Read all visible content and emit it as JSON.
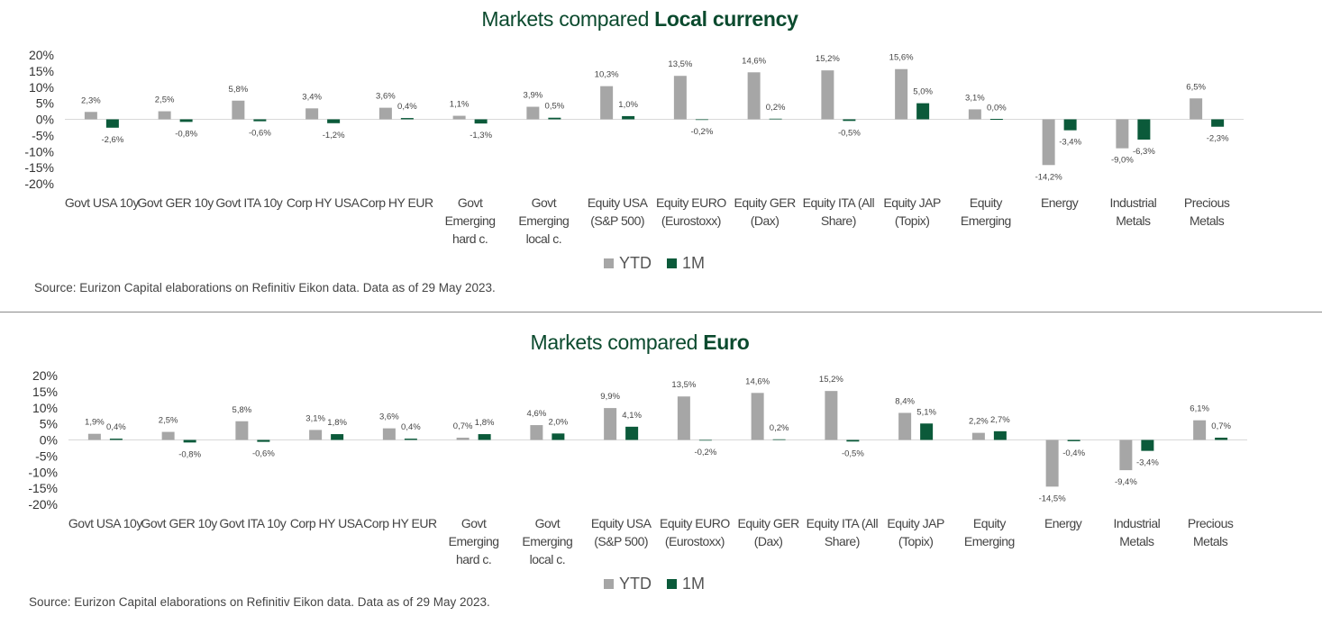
{
  "colors": {
    "ytd": "#a6a6a6",
    "m1": "#0b5a3a",
    "title": "#0b4a2e",
    "axis_line": "#d9d9d9"
  },
  "chart_data": [
    {
      "type": "bar",
      "title_prefix": "Markets compared ",
      "title_bold": "Local currency",
      "categories": [
        [
          "Govt USA 10y"
        ],
        [
          "Govt GER 10y"
        ],
        [
          "Govt ITA 10y"
        ],
        [
          "Corp HY USA"
        ],
        [
          "Corp HY EUR"
        ],
        [
          "Govt",
          "Emerging",
          "hard c."
        ],
        [
          "Govt",
          "Emerging",
          "local c."
        ],
        [
          "Equity USA",
          "(S&P 500)"
        ],
        [
          "Equity EURO",
          "(Eurostoxx)"
        ],
        [
          "Equity GER",
          "(Dax)"
        ],
        [
          "Equity ITA (All",
          "Share)"
        ],
        [
          "Equity JAP",
          "(Topix)"
        ],
        [
          "Equity",
          "Emerging"
        ],
        [
          "Energy"
        ],
        [
          "Industrial",
          "Metals"
        ],
        [
          "Precious",
          "Metals"
        ]
      ],
      "series": [
        {
          "name": "YTD",
          "values": [
            2.3,
            2.5,
            5.8,
            3.4,
            3.6,
            1.1,
            3.9,
            10.3,
            13.5,
            14.6,
            15.2,
            15.6,
            3.1,
            -14.2,
            -9.0,
            6.5
          ],
          "labels": [
            "2,3%",
            "2,5%",
            "5,8%",
            "3,4%",
            "3,6%",
            "1,1%",
            "3,9%",
            "10,3%",
            "13,5%",
            "14,6%",
            "15,2%",
            "15,6%",
            "3,1%",
            "-14,2%",
            "-9,0%",
            "6,5%"
          ]
        },
        {
          "name": "1M",
          "values": [
            -2.6,
            -0.8,
            -0.6,
            -1.2,
            0.4,
            -1.3,
            0.5,
            1.0,
            -0.2,
            0.2,
            -0.5,
            5.0,
            0.0,
            -3.4,
            -6.3,
            -2.3
          ],
          "labels": [
            "-2,6%",
            "-0,8%",
            "-0,6%",
            "-1,2%",
            "0,4%",
            "-1,3%",
            "0,5%",
            "1,0%",
            "-0,2%",
            "0,2%",
            "-0,5%",
            "5,0%",
            "0,0%",
            "-3,4%",
            "-6,3%",
            "-2,3%"
          ]
        }
      ],
      "yticks": [
        "20%",
        "15%",
        "10%",
        "5%",
        "0%",
        "-5%",
        "-10%",
        "-15%",
        "-20%"
      ],
      "ylim": [
        -20,
        20
      ],
      "legend_placement": "bottom",
      "grid": false,
      "source": "Source: Eurizon Capital elaborations on Refinitiv Eikon data. Data as of 29 May 2023."
    },
    {
      "type": "bar",
      "title_prefix": "Markets compared ",
      "title_bold": "Euro",
      "categories": [
        [
          "Govt USA 10y"
        ],
        [
          "Govt GER 10y"
        ],
        [
          "Govt ITA 10y"
        ],
        [
          "Corp HY USA"
        ],
        [
          "Corp HY EUR"
        ],
        [
          "Govt",
          "Emerging",
          "hard c."
        ],
        [
          "Govt",
          "Emerging",
          "local c."
        ],
        [
          "Equity USA",
          "(S&P 500)"
        ],
        [
          "Equity EURO",
          "(Eurostoxx)"
        ],
        [
          "Equity GER",
          "(Dax)"
        ],
        [
          "Equity ITA (All",
          "Share)"
        ],
        [
          "Equity JAP",
          "(Topix)"
        ],
        [
          "Equity",
          "Emerging"
        ],
        [
          "Energy"
        ],
        [
          "Industrial",
          "Metals"
        ],
        [
          "Precious",
          "Metals"
        ]
      ],
      "series": [
        {
          "name": "YTD",
          "values": [
            1.9,
            2.5,
            5.8,
            3.1,
            3.6,
            0.7,
            4.6,
            9.9,
            13.5,
            14.6,
            15.2,
            8.4,
            2.2,
            -14.5,
            -9.4,
            6.1
          ],
          "labels": [
            "1,9%",
            "2,5%",
            "5,8%",
            "3,1%",
            "3,6%",
            "0,7%",
            "4,6%",
            "9,9%",
            "13,5%",
            "14,6%",
            "15,2%",
            "8,4%",
            "2,2%",
            "-14,5%",
            "-9,4%",
            "6,1%"
          ]
        },
        {
          "name": "1M",
          "values": [
            0.4,
            -0.8,
            -0.6,
            1.8,
            0.4,
            1.8,
            2.0,
            4.1,
            -0.2,
            0.2,
            -0.5,
            5.1,
            2.7,
            -0.4,
            -3.4,
            0.7
          ],
          "labels": [
            "0,4%",
            "-0,8%",
            "-0,6%",
            "1,8%",
            "0,4%",
            "1,8%",
            "2,0%",
            "4,1%",
            "-0,2%",
            "0,2%",
            "-0,5%",
            "5,1%",
            "2,7%",
            "-0,4%",
            "-3,4%",
            "0,7%"
          ]
        }
      ],
      "yticks": [
        "20%",
        "15%",
        "10%",
        "5%",
        "0%",
        "-5%",
        "-10%",
        "-15%",
        "-20%"
      ],
      "ylim": [
        -20,
        20
      ],
      "legend_placement": "bottom",
      "grid": false,
      "source": "Source: Eurizon Capital elaborations on Refinitiv Eikon data. Data as of 29 May 2023."
    }
  ]
}
